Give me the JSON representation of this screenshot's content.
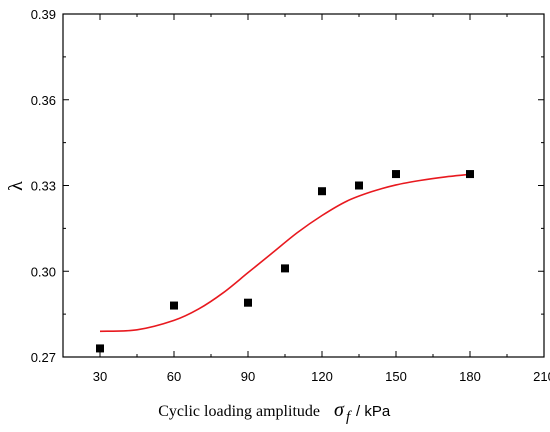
{
  "chart_data": {
    "type": "scatter",
    "title": "",
    "xlabel": {
      "text": "Cyclic loading amplitude",
      "symbol": "σ",
      "subscript": "f",
      "unit": "/ kPa"
    },
    "ylabel": "λ",
    "xlim": [
      15,
      210
    ],
    "ylim": [
      0.27,
      0.39
    ],
    "xticks": [
      30,
      60,
      90,
      120,
      150,
      180,
      210
    ],
    "yticks": [
      0.27,
      0.3,
      0.33,
      0.36,
      0.39
    ],
    "ytick_labels": [
      "0.27",
      "0.30",
      "0.33",
      "0.36",
      "0.39"
    ],
    "grid": false,
    "legend": "none",
    "series": [
      {
        "kind": "points",
        "marker": "square",
        "color": "#000000",
        "x": [
          30,
          60,
          90,
          105,
          120,
          135,
          150,
          180
        ],
        "y": [
          0.273,
          0.288,
          0.289,
          0.301,
          0.328,
          0.33,
          0.334,
          0.334
        ]
      },
      {
        "kind": "fit-line",
        "color": "#e8191f",
        "x": [
          30,
          45,
          60,
          70,
          80,
          90,
          100,
          110,
          120,
          130,
          140,
          150,
          160,
          170,
          180
        ],
        "y": [
          0.279,
          0.2795,
          0.2828,
          0.2868,
          0.2925,
          0.2995,
          0.3065,
          0.3135,
          0.3195,
          0.3245,
          0.3278,
          0.3302,
          0.3318,
          0.333,
          0.3339
        ]
      }
    ]
  }
}
